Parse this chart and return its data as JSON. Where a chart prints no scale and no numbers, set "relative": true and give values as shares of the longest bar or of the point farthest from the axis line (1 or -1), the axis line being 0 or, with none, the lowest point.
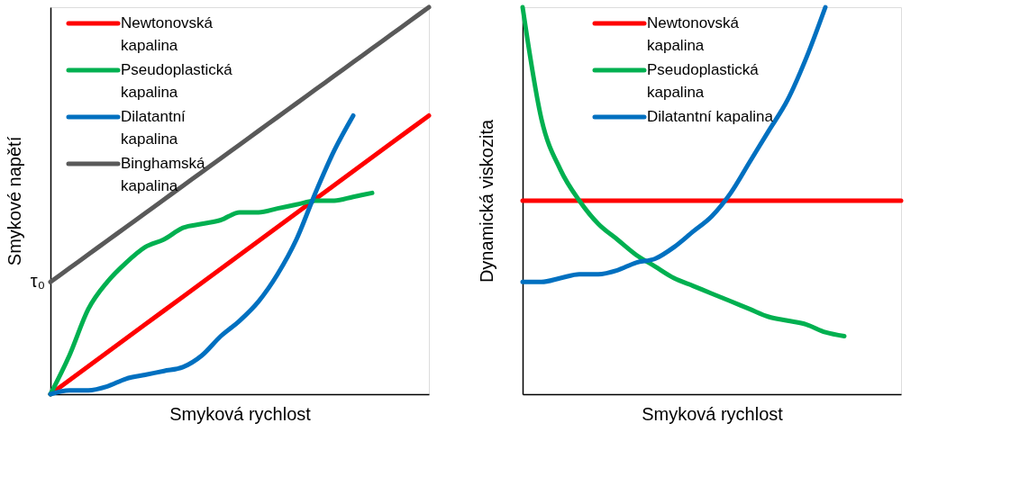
{
  "chart_data": [
    {
      "type": "line",
      "relative": true,
      "xlabel": "Smyková rychlost",
      "ylabel": "Smykové napětí",
      "legend": "top left",
      "annotations": [
        "τ₀"
      ],
      "categories": [
        null,
        null,
        null,
        null,
        null,
        null,
        null,
        null,
        null,
        null,
        null,
        null,
        null,
        null,
        null,
        null,
        null,
        null,
        null,
        null,
        null
      ],
      "series": [
        {
          "name": "Newtonovská kapalina",
          "color": "#ff0000",
          "values": [
            0,
            0.036,
            0.072,
            0.108,
            0.144,
            0.18,
            0.216,
            0.252,
            0.288,
            0.324,
            0.36,
            0.396,
            0.432,
            0.468,
            0.504,
            0.54,
            0.576,
            0.612,
            0.648,
            0.684,
            0.72
          ]
        },
        {
          "name": "Pseudoplastická kapalina",
          "color": "#00b050",
          "values": [
            0,
            0.1,
            0.22,
            0.29,
            0.34,
            0.38,
            0.4,
            0.43,
            0.44,
            0.45,
            0.47,
            0.47,
            0.48,
            0.49,
            0.5,
            0.5,
            0.51,
            0.52,
            null,
            null,
            null
          ]
        },
        {
          "name": "Dilatantní kapalina",
          "color": "#0070c0",
          "values": [
            0,
            0.01,
            0.01,
            0.02,
            0.04,
            0.05,
            0.06,
            0.07,
            0.1,
            0.15,
            0.19,
            0.24,
            0.31,
            0.4,
            0.52,
            0.63,
            0.72,
            null,
            null,
            null,
            null
          ]
        },
        {
          "name": "Binghamská kapalina",
          "color": "#595959",
          "values": [
            0.29,
            0.3255,
            0.361,
            0.3965,
            0.432,
            0.4675,
            0.503,
            0.5385,
            0.574,
            0.6095,
            0.645,
            0.6805,
            0.716,
            0.7515,
            0.787,
            0.8225,
            0.858,
            0.8935,
            0.929,
            0.9645,
            1.0
          ]
        }
      ]
    },
    {
      "type": "line",
      "relative": true,
      "xlabel": "Smyková rychlost",
      "ylabel": "Dynamická viskozita",
      "legend": "top left",
      "categories": [
        null,
        null,
        null,
        null,
        null,
        null,
        null,
        null,
        null,
        null,
        null,
        null,
        null,
        null,
        null,
        null,
        null,
        null,
        null,
        null,
        null
      ],
      "series": [
        {
          "name": "Newtonovská kapalina",
          "color": "#ff0000",
          "values": [
            0.5,
            0.5,
            0.5,
            0.5,
            0.5,
            0.5,
            0.5,
            0.5,
            0.5,
            0.5,
            0.5,
            0.5,
            0.5,
            0.5,
            0.5,
            0.5,
            0.5,
            0.5,
            0.5,
            0.5,
            0.5
          ]
        },
        {
          "name": "Pseudoplastická kapalina",
          "color": "#00b050",
          "values": [
            1.0,
            0.71,
            0.58,
            0.5,
            0.44,
            0.4,
            0.36,
            0.33,
            0.3,
            0.28,
            0.26,
            0.24,
            0.22,
            0.2,
            0.19,
            0.18,
            0.16,
            0.15,
            null,
            null,
            null
          ]
        },
        {
          "name": "Dilatantní kapalina",
          "color": "#0070c0",
          "values": [
            0.29,
            0.29,
            0.3,
            0.31,
            0.31,
            0.32,
            0.34,
            0.35,
            0.38,
            0.42,
            0.46,
            0.52,
            0.6,
            0.68,
            0.76,
            0.87,
            1.0,
            null,
            null,
            null,
            null
          ]
        }
      ]
    }
  ]
}
